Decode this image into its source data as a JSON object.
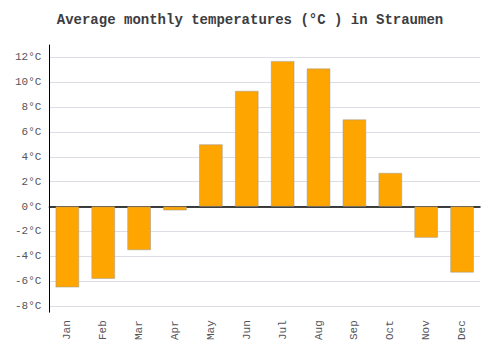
{
  "chart_data": {
    "type": "bar",
    "title": "Average monthly temperatures (°C ) in Straumen",
    "categories": [
      "Jan",
      "Feb",
      "Mar",
      "Apr",
      "May",
      "Jun",
      "Jul",
      "Aug",
      "Sep",
      "Oct",
      "Nov",
      "Dec"
    ],
    "values": [
      -6.5,
      -5.8,
      -3.5,
      -0.3,
      5.0,
      9.3,
      11.7,
      11.1,
      7.0,
      2.7,
      -2.5,
      -5.3
    ],
    "color": "#FFA500",
    "ylim": [
      -8.5,
      13
    ],
    "yticks": [
      {
        "value": -8,
        "label": "-8°C"
      },
      {
        "value": -6,
        "label": "-6°C"
      },
      {
        "value": -4,
        "label": "-4°C"
      },
      {
        "value": -2,
        "label": "-2°C"
      },
      {
        "value": 0,
        "label": "0°C"
      },
      {
        "value": 2,
        "label": "2°C"
      },
      {
        "value": 4,
        "label": "4°C"
      },
      {
        "value": 6,
        "label": "6°C"
      },
      {
        "value": 8,
        "label": "8°C"
      },
      {
        "value": 10,
        "label": "10°C"
      },
      {
        "value": 12,
        "label": "12°C"
      }
    ],
    "grid": true
  }
}
